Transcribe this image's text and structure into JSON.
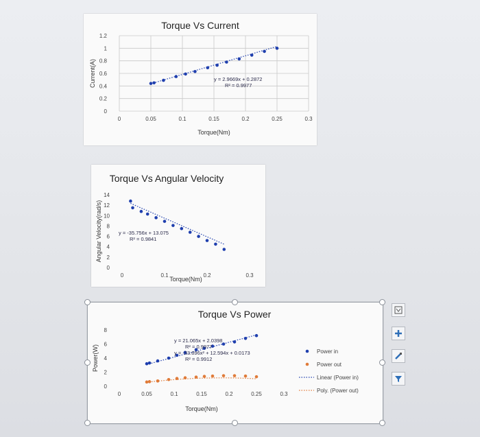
{
  "chart_data": [
    {
      "type": "scatter",
      "title": "Torque Vs Current",
      "xlabel": "Torque(Nm)",
      "ylabel": "Current(A)",
      "xlim": [
        0,
        0.3
      ],
      "ylim": [
        0,
        1.2
      ],
      "x_ticks": [
        "0",
        "0.05",
        "0.1",
        "0.15",
        "0.2",
        "0.25",
        "0.3"
      ],
      "y_ticks": [
        "0",
        "0.2",
        "0.4",
        "0.6",
        "0.8",
        "1",
        "1.2"
      ],
      "grid": true,
      "series": [
        {
          "color": "#1f3fae",
          "points": [
            [
              0.05,
              0.44
            ],
            [
              0.055,
              0.45
            ],
            [
              0.07,
              0.49
            ],
            [
              0.09,
              0.55
            ],
            [
              0.105,
              0.59
            ],
            [
              0.12,
              0.63
            ],
            [
              0.14,
              0.69
            ],
            [
              0.155,
              0.73
            ],
            [
              0.17,
              0.78
            ],
            [
              0.19,
              0.83
            ],
            [
              0.21,
              0.89
            ],
            [
              0.23,
              0.95
            ],
            [
              0.25,
              1.0
            ]
          ],
          "trendline": {
            "slope": 2.9669,
            "intercept": 0.2872,
            "style": "dotted"
          }
        }
      ],
      "annotations": [
        "y = 2.9669x + 0.2872",
        "R² = 0.9977"
      ]
    },
    {
      "type": "scatter",
      "title": "Torque Vs Angular Velocity",
      "xlabel": "Torque(Nm)",
      "ylabel": "Angular Velocity(rad/s)",
      "xlim": [
        0,
        0.3
      ],
      "ylim": [
        0,
        14
      ],
      "x_ticks": [
        "0",
        "0.1",
        "0.2",
        "0.3"
      ],
      "y_ticks": [
        "0",
        "2",
        "4",
        "6",
        "8",
        "10",
        "12",
        "14"
      ],
      "grid": false,
      "series": [
        {
          "color": "#1f3fae",
          "points": [
            [
              0.02,
              12.8
            ],
            [
              0.025,
              11.5
            ],
            [
              0.045,
              10.8
            ],
            [
              0.06,
              10.3
            ],
            [
              0.08,
              9.6
            ],
            [
              0.1,
              8.9
            ],
            [
              0.12,
              8.1
            ],
            [
              0.14,
              7.5
            ],
            [
              0.16,
              6.8
            ],
            [
              0.18,
              6.0
            ],
            [
              0.2,
              5.2
            ],
            [
              0.22,
              4.5
            ],
            [
              0.24,
              3.5
            ]
          ],
          "trendline": {
            "slope": -35.756,
            "intercept": 13.075,
            "style": "dotted"
          }
        }
      ],
      "annotations": [
        "y = -35.756x + 13.075",
        "R² = 0.9841"
      ]
    },
    {
      "type": "scatter",
      "title": "Torque Vs Power",
      "xlabel": "Torque(Nm)",
      "ylabel": "Power(W)",
      "xlim": [
        0,
        0.3
      ],
      "ylim": [
        0,
        8
      ],
      "x_ticks": [
        "0",
        "0.05",
        "0.1",
        "0.15",
        "0.2",
        "0.25",
        "0.3"
      ],
      "y_ticks": [
        "0",
        "2",
        "4",
        "6",
        "8"
      ],
      "grid": false,
      "legend_position": "right",
      "series": [
        {
          "name": "Power in",
          "color": "#1f3fae",
          "points": [
            [
              0.05,
              3.2
            ],
            [
              0.055,
              3.3
            ],
            [
              0.07,
              3.6
            ],
            [
              0.09,
              4.0
            ],
            [
              0.105,
              4.4
            ],
            [
              0.12,
              4.8
            ],
            [
              0.14,
              5.2
            ],
            [
              0.155,
              5.4
            ],
            [
              0.17,
              5.7
            ],
            [
              0.19,
              6.0
            ],
            [
              0.21,
              6.3
            ],
            [
              0.23,
              6.8
            ],
            [
              0.25,
              7.2
            ]
          ],
          "trendline": {
            "name": "Linear (Power in)",
            "slope": 21.065,
            "intercept": 2.0398
          }
        },
        {
          "name": "Power out",
          "color": "#e07b39",
          "points": [
            [
              0.05,
              0.6
            ],
            [
              0.055,
              0.65
            ],
            [
              0.07,
              0.75
            ],
            [
              0.09,
              0.95
            ],
            [
              0.105,
              1.1
            ],
            [
              0.12,
              1.2
            ],
            [
              0.14,
              1.3
            ],
            [
              0.155,
              1.4
            ],
            [
              0.17,
              1.45
            ],
            [
              0.19,
              1.5
            ],
            [
              0.21,
              1.5
            ],
            [
              0.23,
              1.45
            ],
            [
              0.25,
              1.35
            ]
          ],
          "trendline": {
            "name": "Poly. (Power out)",
            "a": -33.696,
            "b": 12.594,
            "c": 0.0173
          }
        }
      ],
      "annotations": [
        "y = 21.065x + 2.0398",
        "R² = 0.9977",
        "y = -33.696x² + 12.594x + 0.0173",
        "R² = 0.9912"
      ],
      "legend": [
        "Power in",
        "Power out",
        "Linear (Power in)",
        "Poly. (Power out)"
      ]
    }
  ],
  "toolbar_icons": [
    "layout-icon",
    "plus-icon",
    "brush-icon",
    "filter-icon"
  ]
}
